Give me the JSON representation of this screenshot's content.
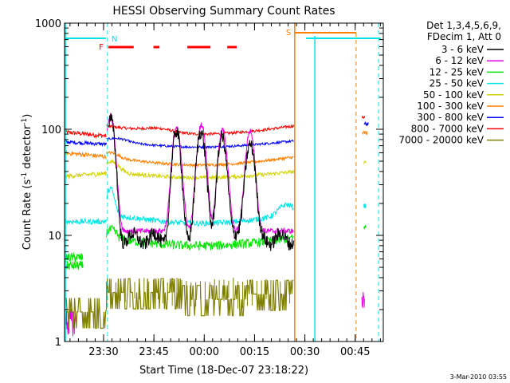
{
  "chart_data": {
    "type": "line",
    "title": "HESSI Observing Summary Count Rates",
    "xlabel": "Start Time (18-Dec-07 23:18:22)",
    "ylabel_main": "Count Rate (s",
    "ylabel_sup1": "-1",
    "ylabel_mid": " detector",
    "ylabel_sup2": "-1",
    "ylabel_end": ")",
    "yscale": "log",
    "ylim": [
      1,
      1000
    ],
    "xlim_minutes": [
      0,
      95
    ],
    "x_ticks": [
      {
        "label": "23:30",
        "t": 11.63
      },
      {
        "label": "23:45",
        "t": 26.63
      },
      {
        "label": "00:00",
        "t": 41.63
      },
      {
        "label": "00:15",
        "t": 56.63
      },
      {
        "label": "00:30",
        "t": 71.63
      },
      {
        "label": "00:45",
        "t": 86.63
      }
    ],
    "y_ticks": [
      {
        "label": "1",
        "v": 1
      },
      {
        "label": "10",
        "v": 10
      },
      {
        "label": "100",
        "v": 100
      },
      {
        "label": "1000",
        "v": 1000
      }
    ],
    "legend_header": [
      "Det 1,3,4,5,6,9,",
      "FDecim 1, Att 0"
    ],
    "series": [
      {
        "name": "3 - 6 keV",
        "color": "#000000"
      },
      {
        "name": "6 - 12 keV",
        "color": "#e600e6"
      },
      {
        "name": "12 - 25 keV",
        "color": "#00e600"
      },
      {
        "name": "25 - 50 keV",
        "color": "#00e6e6"
      },
      {
        "name": "50 - 100 keV",
        "color": "#d2d200"
      },
      {
        "name": "100 - 300 keV",
        "color": "#ff7f00"
      },
      {
        "name": "300 - 800 keV",
        "color": "#0000ff"
      },
      {
        "name": "800 - 7000 keV",
        "color": "#ff0000"
      },
      {
        "name": "7000 - 20000 keV",
        "color": "#808000"
      }
    ],
    "flags": [
      {
        "label": "N",
        "color": "#00e6e6"
      },
      {
        "label": "F",
        "color": "#ff0000"
      },
      {
        "label": "S",
        "color": "#ff7f00"
      }
    ],
    "timestamp": "3-Mar-2010 03:55"
  }
}
